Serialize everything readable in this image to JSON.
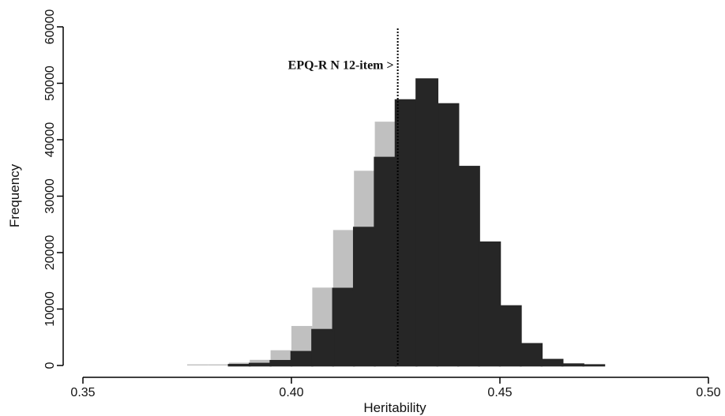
{
  "chart_data": {
    "type": "bar",
    "subtype": "overlaid-histogram",
    "xlabel": "Heritability",
    "ylabel": "Frequency",
    "xlim": [
      0.35,
      0.5
    ],
    "ylim": [
      0,
      60000
    ],
    "xticks": [
      "0.35",
      "0.40",
      "0.45",
      "0.50"
    ],
    "xtick_values": [
      0.35,
      0.4,
      0.45,
      0.5
    ],
    "yticks": [
      "0",
      "10000",
      "20000",
      "30000",
      "40000",
      "50000",
      "60000"
    ],
    "ytick_values": [
      0,
      10000,
      20000,
      30000,
      40000,
      50000,
      60000
    ],
    "bin_width": 0.005,
    "series": [
      {
        "style": "grey-fill",
        "color": "#c0c0c0",
        "bins": [
          {
            "x0": 0.375,
            "x1": 0.38,
            "value": 200
          },
          {
            "x0": 0.38,
            "x1": 0.385,
            "value": 200
          },
          {
            "x0": 0.385,
            "x1": 0.39,
            "value": 500
          },
          {
            "x0": 0.39,
            "x1": 0.395,
            "value": 1000
          },
          {
            "x0": 0.395,
            "x1": 0.4,
            "value": 2700
          },
          {
            "x0": 0.4,
            "x1": 0.405,
            "value": 7000
          },
          {
            "x0": 0.405,
            "x1": 0.41,
            "value": 13800
          },
          {
            "x0": 0.41,
            "x1": 0.415,
            "value": 24000
          },
          {
            "x0": 0.415,
            "x1": 0.42,
            "value": 34500
          },
          {
            "x0": 0.42,
            "x1": 0.425,
            "value": 43200
          },
          {
            "x0": 0.425,
            "x1": 0.43,
            "value": 46200
          },
          {
            "x0": 0.43,
            "x1": 0.435,
            "value": 44200
          },
          {
            "x0": 0.435,
            "x1": 0.44,
            "value": 36000
          },
          {
            "x0": 0.44,
            "x1": 0.445,
            "value": 25000
          },
          {
            "x0": 0.445,
            "x1": 0.45,
            "value": 14200
          },
          {
            "x0": 0.45,
            "x1": 0.455,
            "value": 6300
          },
          {
            "x0": 0.455,
            "x1": 0.46,
            "value": 2100
          },
          {
            "x0": 0.46,
            "x1": 0.465,
            "value": 500
          },
          {
            "x0": 0.465,
            "x1": 0.47,
            "value": 100
          }
        ]
      },
      {
        "style": "outlined-dark",
        "color": "#262626",
        "bins": [
          {
            "x0": 0.385,
            "x1": 0.39,
            "value": 100
          },
          {
            "x0": 0.39,
            "x1": 0.395,
            "value": 300
          },
          {
            "x0": 0.395,
            "x1": 0.4,
            "value": 800
          },
          {
            "x0": 0.4,
            "x1": 0.405,
            "value": 2400
          },
          {
            "x0": 0.405,
            "x1": 0.41,
            "value": 6300
          },
          {
            "x0": 0.41,
            "x1": 0.415,
            "value": 13600
          },
          {
            "x0": 0.415,
            "x1": 0.42,
            "value": 24400
          },
          {
            "x0": 0.42,
            "x1": 0.425,
            "value": 36800
          },
          {
            "x0": 0.425,
            "x1": 0.43,
            "value": 47000
          },
          {
            "x0": 0.43,
            "x1": 0.435,
            "value": 50700
          },
          {
            "x0": 0.435,
            "x1": 0.44,
            "value": 46300
          },
          {
            "x0": 0.44,
            "x1": 0.445,
            "value": 35200
          },
          {
            "x0": 0.445,
            "x1": 0.45,
            "value": 21800
          },
          {
            "x0": 0.45,
            "x1": 0.455,
            "value": 10500
          },
          {
            "x0": 0.455,
            "x1": 0.46,
            "value": 3800
          },
          {
            "x0": 0.46,
            "x1": 0.465,
            "value": 1000
          },
          {
            "x0": 0.465,
            "x1": 0.47,
            "value": 200
          },
          {
            "x0": 0.47,
            "x1": 0.475,
            "value": 50
          }
        ]
      }
    ],
    "reference_line": {
      "x": 0.4255,
      "style": "dotted",
      "label": "EPQ-R N 12-item >"
    }
  }
}
